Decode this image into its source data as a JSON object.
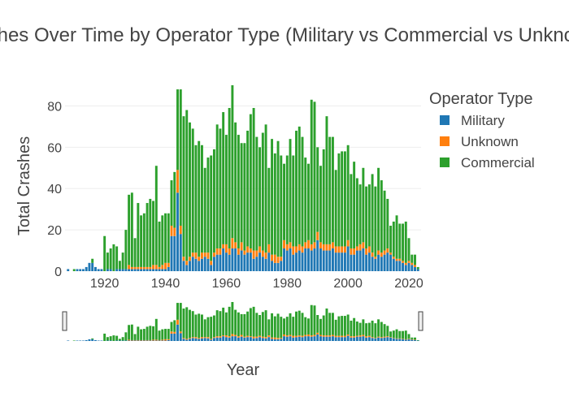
{
  "chart_data": {
    "type": "bar",
    "barmode": "stack",
    "title": "Aviation Crashes Over Time by Operator Type (Military vs Commercial vs Unknown)",
    "xlabel": "Year",
    "ylabel": "Total Crashes",
    "xlim": [
      1907,
      2024
    ],
    "ylim": [
      0,
      90
    ],
    "x_ticks": [
      1920,
      1940,
      1960,
      1980,
      2000,
      2020
    ],
    "y_ticks": [
      0,
      20,
      40,
      60,
      80
    ],
    "grid": true,
    "legend": {
      "title": "Operator Type",
      "placement": "top-right"
    },
    "rangeslider": true,
    "colors": {
      "Military": "#1f77b4",
      "Unknown": "#ff7f0e",
      "Commercial": "#2ca02c"
    },
    "x": [
      1908,
      1909,
      1910,
      1911,
      1912,
      1913,
      1914,
      1915,
      1916,
      1917,
      1918,
      1919,
      1920,
      1921,
      1922,
      1923,
      1924,
      1925,
      1926,
      1927,
      1928,
      1929,
      1930,
      1931,
      1932,
      1933,
      1934,
      1935,
      1936,
      1937,
      1938,
      1939,
      1940,
      1941,
      1942,
      1943,
      1944,
      1945,
      1946,
      1947,
      1948,
      1949,
      1950,
      1951,
      1952,
      1953,
      1954,
      1955,
      1956,
      1957,
      1958,
      1959,
      1960,
      1961,
      1962,
      1963,
      1964,
      1965,
      1966,
      1967,
      1968,
      1969,
      1970,
      1971,
      1972,
      1973,
      1974,
      1975,
      1976,
      1977,
      1978,
      1979,
      1980,
      1981,
      1982,
      1983,
      1984,
      1985,
      1986,
      1987,
      1988,
      1989,
      1990,
      1991,
      1992,
      1993,
      1994,
      1995,
      1996,
      1997,
      1998,
      1999,
      2000,
      2001,
      2002,
      2003,
      2004,
      2005,
      2006,
      2007,
      2008,
      2009,
      2010,
      2011,
      2012,
      2013,
      2014,
      2015,
      2016,
      2017,
      2018,
      2019,
      2020,
      2021,
      2022,
      2023
    ],
    "series": [
      {
        "name": "Military",
        "values": [
          1,
          0,
          0,
          1,
          1,
          1,
          2,
          4,
          4,
          2,
          1,
          1,
          0,
          1,
          1,
          0,
          1,
          1,
          1,
          1,
          1,
          1,
          1,
          1,
          1,
          1,
          1,
          1,
          1,
          1,
          1,
          1,
          1,
          2,
          17,
          17,
          38,
          18,
          5,
          3,
          5,
          7,
          6,
          5,
          6,
          7,
          6,
          3,
          7,
          8,
          8,
          11,
          9,
          8,
          11,
          11,
          8,
          10,
          8,
          9,
          9,
          6,
          7,
          9,
          7,
          6,
          9,
          5,
          4,
          4,
          5,
          11,
          10,
          11,
          8,
          9,
          10,
          9,
          11,
          11,
          10,
          11,
          15,
          11,
          10,
          10,
          10,
          11,
          9,
          9,
          9,
          9,
          12,
          8,
          8,
          10,
          10,
          11,
          8,
          9,
          7,
          6,
          8,
          7,
          8,
          9,
          8,
          6,
          5,
          5,
          4,
          3,
          4,
          3,
          2,
          1
        ]
      },
      {
        "name": "Unknown",
        "values": [
          0,
          0,
          0,
          0,
          0,
          0,
          0,
          0,
          0,
          0,
          0,
          0,
          0,
          0,
          0,
          0,
          0,
          0,
          0,
          0,
          2,
          1,
          1,
          1,
          1,
          1,
          1,
          1,
          2,
          2,
          1,
          2,
          3,
          2,
          5,
          4,
          11,
          4,
          2,
          2,
          2,
          2,
          3,
          2,
          3,
          2,
          3,
          2,
          2,
          3,
          3,
          2,
          4,
          3,
          5,
          3,
          3,
          4,
          2,
          3,
          2,
          4,
          3,
          3,
          3,
          3,
          4,
          3,
          4,
          3,
          2,
          4,
          3,
          3,
          4,
          3,
          3,
          3,
          3,
          4,
          3,
          3,
          4,
          3,
          3,
          3,
          3,
          3,
          3,
          3,
          3,
          3,
          3,
          3,
          3,
          2,
          3,
          3,
          3,
          3,
          2,
          1,
          2,
          2,
          2,
          2,
          1,
          1,
          1,
          1,
          1,
          1,
          1,
          1,
          1,
          0
        ]
      },
      {
        "name": "Commercial",
        "values": [
          0,
          0,
          1,
          0,
          0,
          0,
          0,
          0,
          2,
          0,
          0,
          0,
          17,
          8,
          10,
          13,
          11,
          4,
          8,
          19,
          34,
          36,
          14,
          31,
          25,
          26,
          31,
          33,
          31,
          48,
          22,
          24,
          24,
          24,
          22,
          27,
          39,
          66,
          68,
          73,
          65,
          60,
          52,
          56,
          52,
          41,
          46,
          51,
          50,
          60,
          58,
          64,
          53,
          68,
          74,
          58,
          55,
          48,
          52,
          56,
          65,
          69,
          55,
          48,
          57,
          62,
          37,
          56,
          49,
          56,
          49,
          37,
          43,
          50,
          44,
          56,
          57,
          53,
          41,
          37,
          70,
          68,
          41,
          37,
          46,
          62,
          52,
          51,
          37,
          45,
          46,
          46,
          46,
          36,
          42,
          33,
          29,
          36,
          30,
          30,
          38,
          34,
          40,
          35,
          29,
          24,
          13,
          17,
          21,
          17,
          18,
          20,
          11,
          4,
          5,
          1
        ]
      }
    ]
  }
}
